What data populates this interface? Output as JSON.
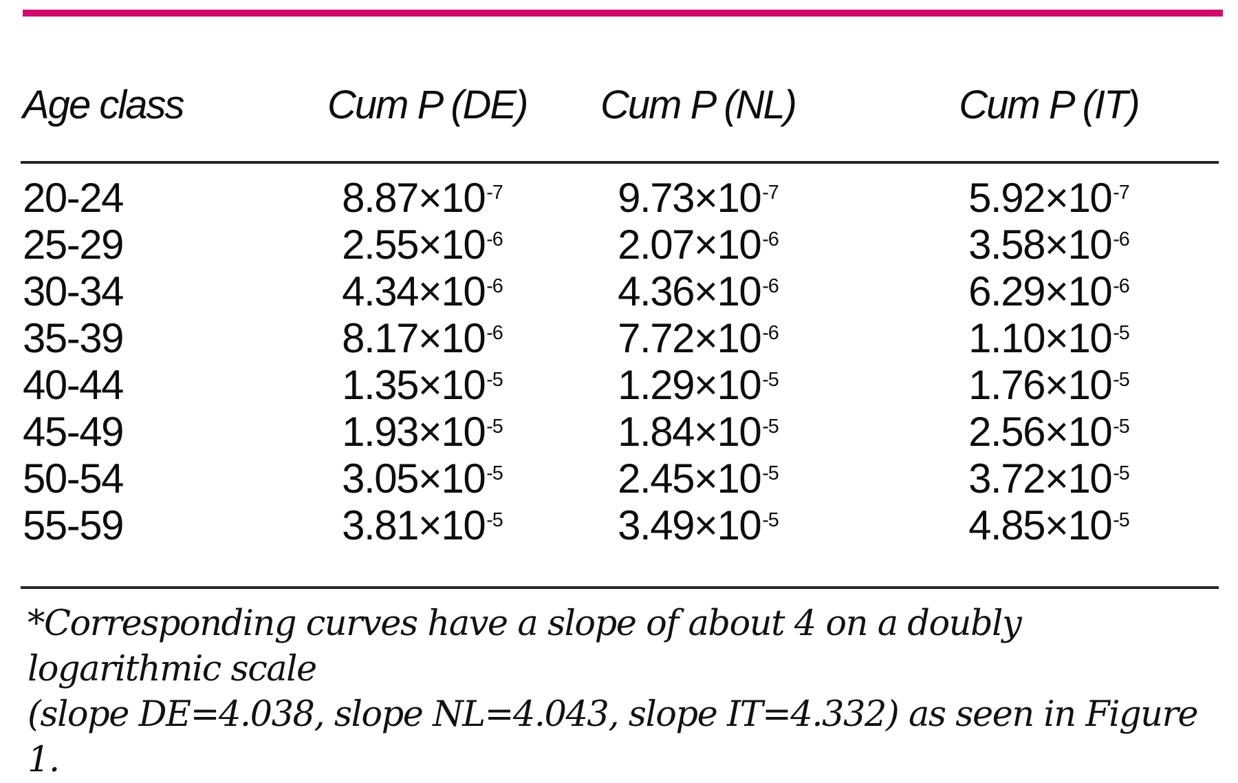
{
  "colors": {
    "accent": "#cf0a6b",
    "rule": "#262626",
    "text": "#0d0d0d"
  },
  "table": {
    "headers": [
      "Age class",
      "Cum P (DE)",
      "Cum P (NL)",
      "Cum P (IT)"
    ],
    "power_prefix": "×10",
    "rows": [
      {
        "age": "20-24",
        "de": {
          "m": "8.87",
          "e": "-7"
        },
        "nl": {
          "m": "9.73",
          "e": "-7"
        },
        "it": {
          "m": "5.92",
          "e": "-7"
        }
      },
      {
        "age": "25-29",
        "de": {
          "m": "2.55",
          "e": "-6"
        },
        "nl": {
          "m": "2.07",
          "e": "-6"
        },
        "it": {
          "m": "3.58",
          "e": "-6"
        }
      },
      {
        "age": "30-34",
        "de": {
          "m": "4.34",
          "e": "-6"
        },
        "nl": {
          "m": "4.36",
          "e": "-6"
        },
        "it": {
          "m": "6.29",
          "e": "-6"
        }
      },
      {
        "age": "35-39",
        "de": {
          "m": "8.17",
          "e": "-6"
        },
        "nl": {
          "m": "7.72",
          "e": "-6"
        },
        "it": {
          "m": "1.10",
          "e": "-5"
        }
      },
      {
        "age": "40-44",
        "de": {
          "m": "1.35",
          "e": "-5"
        },
        "nl": {
          "m": "1.29",
          "e": "-5"
        },
        "it": {
          "m": "1.76",
          "e": "-5"
        }
      },
      {
        "age": "45-49",
        "de": {
          "m": "1.93",
          "e": "-5"
        },
        "nl": {
          "m": "1.84",
          "e": "-5"
        },
        "it": {
          "m": "2.56",
          "e": "-5"
        }
      },
      {
        "age": "50-54",
        "de": {
          "m": "3.05",
          "e": "-5"
        },
        "nl": {
          "m": "2.45",
          "e": "-5"
        },
        "it": {
          "m": "3.72",
          "e": "-5"
        }
      },
      {
        "age": "55-59",
        "de": {
          "m": "3.81",
          "e": "-5"
        },
        "nl": {
          "m": "3.49",
          "e": "-5"
        },
        "it": {
          "m": "4.85",
          "e": "-5"
        }
      }
    ]
  },
  "footnote": {
    "line1": "*Corresponding curves have a slope of about 4 on a doubly logarithmic scale",
    "line2": "(slope DE=4.038, slope NL=4.043, slope IT=4.332) as seen in Figure 1."
  }
}
